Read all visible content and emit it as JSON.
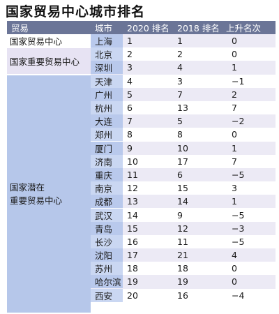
{
  "title": "国家贸易中心城市排名",
  "headers": {
    "trade": "贸易",
    "city": "城市",
    "rank2020": "2020 排名",
    "rank2018": "2018 排名",
    "change": "上升名次"
  },
  "categories": {
    "national": "国家贸易中心",
    "important": "国家重要贸易中心",
    "potential_line1": "国家潜在",
    "potential_line2": "重要贸易中心"
  },
  "rows": [
    {
      "city": "上海",
      "r2020": "1",
      "r2018": "1",
      "chg": "0"
    },
    {
      "city": "北京",
      "r2020": "2",
      "r2018": "2",
      "chg": "0"
    },
    {
      "city": "深圳",
      "r2020": "3",
      "r2018": "4",
      "chg": "1"
    },
    {
      "city": "天津",
      "r2020": "4",
      "r2018": "3",
      "chg": "−1"
    },
    {
      "city": "广州",
      "r2020": "5",
      "r2018": "7",
      "chg": "2"
    },
    {
      "city": "杭州",
      "r2020": "6",
      "r2018": "13",
      "chg": "7"
    },
    {
      "city": "大连",
      "r2020": "7",
      "r2018": "5",
      "chg": "−2"
    },
    {
      "city": "郑州",
      "r2020": "8",
      "r2018": "8",
      "chg": "0"
    },
    {
      "city": "厦门",
      "r2020": "9",
      "r2018": "10",
      "chg": "1"
    },
    {
      "city": "济南",
      "r2020": "10",
      "r2018": "17",
      "chg": "7"
    },
    {
      "city": "重庆",
      "r2020": "11",
      "r2018": "6",
      "chg": "−5"
    },
    {
      "city": "南京",
      "r2020": "12",
      "r2018": "15",
      "chg": "3"
    },
    {
      "city": "成都",
      "r2020": "13",
      "r2018": "14",
      "chg": "1"
    },
    {
      "city": "武汉",
      "r2020": "14",
      "r2018": "9",
      "chg": "−5"
    },
    {
      "city": "青岛",
      "r2020": "15",
      "r2018": "12",
      "chg": "−3"
    },
    {
      "city": "长沙",
      "r2020": "16",
      "r2018": "11",
      "chg": "−5"
    },
    {
      "city": "沈阳",
      "r2020": "17",
      "r2018": "21",
      "chg": "4"
    },
    {
      "city": "苏州",
      "r2020": "18",
      "r2018": "18",
      "chg": "0"
    },
    {
      "city": "哈尔滨",
      "r2020": "19",
      "r2018": "19",
      "chg": "0"
    },
    {
      "city": "西安",
      "r2020": "20",
      "r2018": "16",
      "chg": "−4"
    }
  ]
}
